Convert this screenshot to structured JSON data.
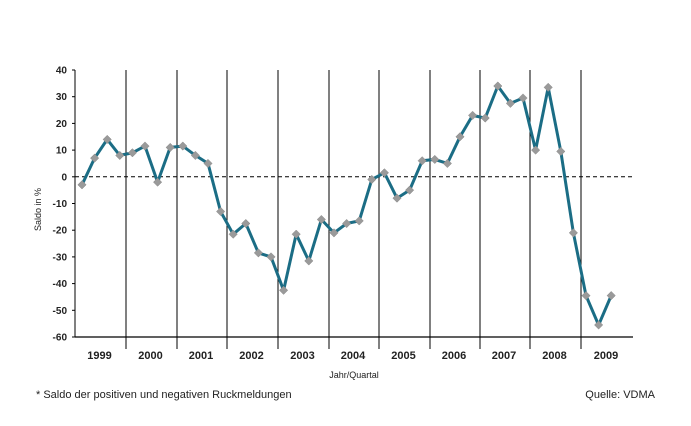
{
  "chart_data": {
    "type": "line",
    "title": "",
    "xlabel": "Jahr/Quartal",
    "ylabel": "Saldo in %",
    "ylim": [
      -60,
      40
    ],
    "yticks": [
      40,
      30,
      20,
      10,
      0,
      -10,
      -20,
      -30,
      -40,
      -50,
      -60
    ],
    "year_labels": [
      "1999",
      "2000",
      "2001",
      "2002",
      "2003",
      "2004",
      "2005",
      "2006",
      "2007",
      "2008",
      "2009"
    ],
    "grid": "vertical year separators, dashed zero line",
    "series": [
      {
        "color": "#1b6d85",
        "marker_color": "#9a9a9a",
        "values": [
          -3,
          7,
          14,
          8,
          9,
          11.5,
          -2,
          11,
          11.5,
          8,
          5,
          -13,
          -21.5,
          -17.5,
          -28.5,
          -30,
          -42.5,
          -21.5,
          -31.5,
          -16,
          -21,
          -17.5,
          -16.5,
          -1,
          1.5,
          -8,
          -5,
          6,
          6.5,
          5,
          15,
          23,
          22,
          34,
          27.5,
          29.5,
          10,
          33.5,
          9.5,
          -21,
          -44.5,
          -55.5,
          -44.5
        ]
      }
    ]
  },
  "footnote": "* Saldo der positiven und negativen Ruckmeldungen",
  "source": "Quelle: VDMA"
}
